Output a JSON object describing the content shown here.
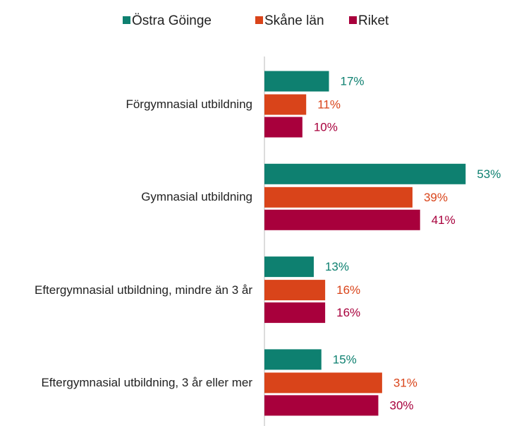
{
  "chart_data": {
    "type": "bar",
    "orientation": "horizontal",
    "categories": [
      "Förgymnasial utbildning",
      "Gymnasial utbildning",
      "Eftergymnasial utbildning, mindre än 3 år",
      "Eftergymnasial utbildning, 3 år eller mer"
    ],
    "series": [
      {
        "name": "Östra Göinge",
        "color": "#0e8070",
        "values": [
          17,
          53,
          13,
          15
        ],
        "value_labels": [
          "17%",
          "53%",
          "13%",
          "15%"
        ]
      },
      {
        "name": "Skåne län",
        "color": "#d9441a",
        "values": [
          11,
          39,
          16,
          31
        ],
        "value_labels": [
          "11%",
          "39%",
          "16%",
          "31%"
        ]
      },
      {
        "name": "Riket",
        "color": "#a8003c",
        "values": [
          10,
          41,
          16,
          30
        ],
        "value_labels": [
          "10%",
          "41%",
          "16%",
          "30%"
        ]
      }
    ],
    "xlim": [
      0,
      60
    ],
    "legend": "top"
  }
}
